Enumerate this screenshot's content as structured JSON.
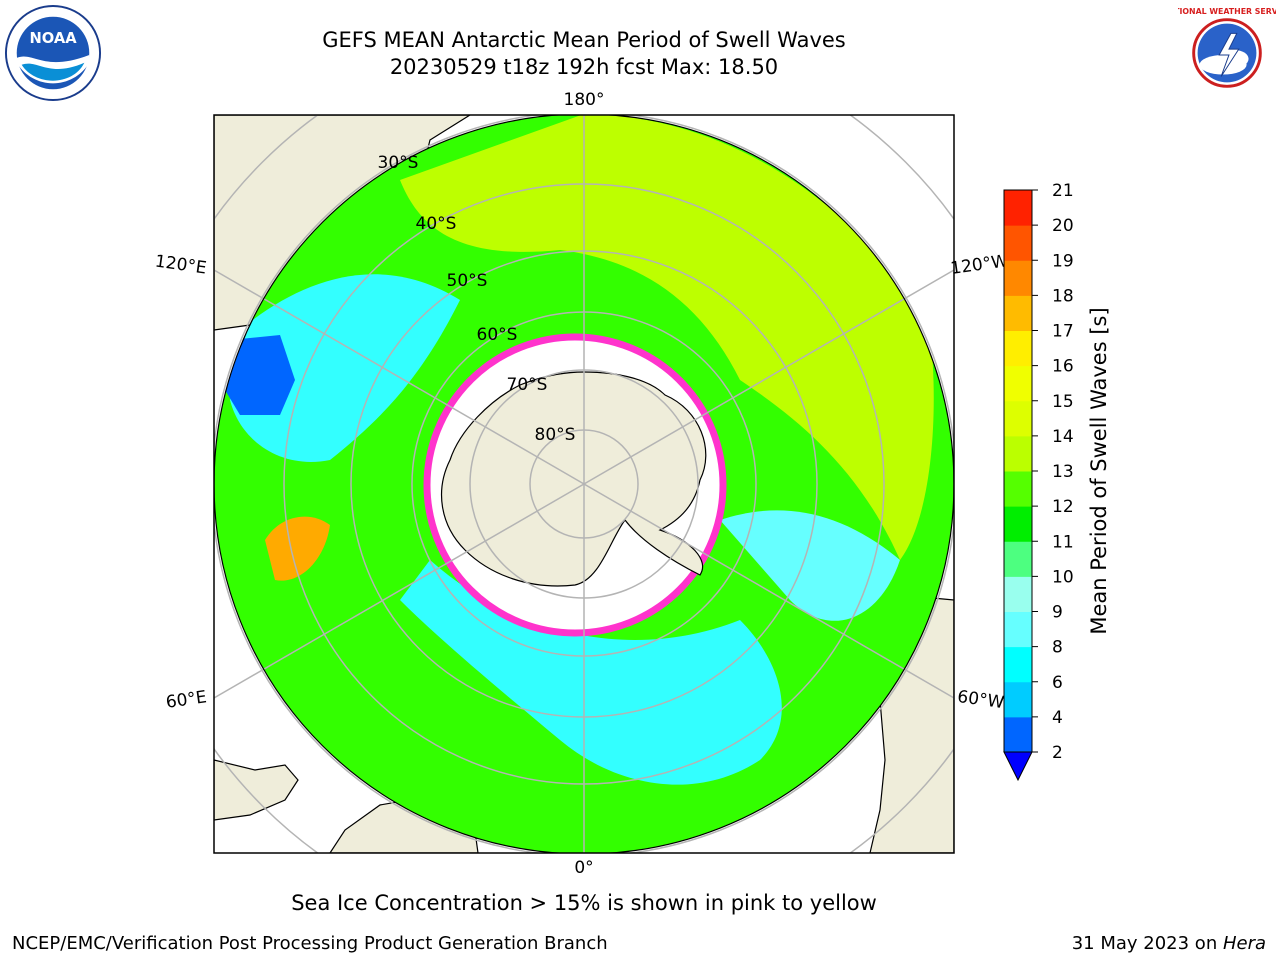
{
  "header": {
    "title_line1": "GEFS MEAN Antarctic Mean Period of Swell Waves",
    "title_line2": "20230529 t18z 192h fcst   Max: 18.50"
  },
  "logos": {
    "left": {
      "name": "noaa-logo",
      "text": "NOAA"
    },
    "right": {
      "name": "nws-logo",
      "text": "NATIONAL WEATHER SERVICE"
    }
  },
  "map": {
    "projection": "south-polar-stereographic",
    "longitude_labels": [
      "180°",
      "120°E",
      "120°W",
      "60°E",
      "60°W",
      "0°"
    ],
    "latitude_labels": [
      "30°S",
      "40°S",
      "50°S",
      "60°S",
      "70°S",
      "80°S"
    ],
    "colors": {
      "land": "#efedda",
      "ocean_high": "#ccff00",
      "ocean_mid": "#33ff00",
      "ocean_low": "#33ffff",
      "ice_edge": "#ff33cc",
      "grid": "#b4b4b4"
    }
  },
  "colorbar": {
    "label": "Mean Period of Swell Waves [s]",
    "ticks": [
      2,
      4,
      6,
      8,
      9,
      10,
      11,
      12,
      13,
      14,
      15,
      16,
      17,
      18,
      19,
      20,
      21
    ],
    "colors": [
      "#0066ff",
      "#00ccff",
      "#00ffff",
      "#66ffff",
      "#99ffee",
      "#4dff80",
      "#00ee00",
      "#55ff00",
      "#bbff00",
      "#ddff00",
      "#f0ff00",
      "#ffee00",
      "#ffbb00",
      "#ff8800",
      "#ff5500",
      "#ff2200"
    ],
    "extend_color": "#0000ff"
  },
  "caption": "Sea Ice Concentration > 15% is shown in pink to yellow",
  "footer": {
    "left": "NCEP/EMC/Verification Post Processing Product Generation Branch",
    "right_prefix": "31 May 2023 on ",
    "right_host": "Hera"
  }
}
